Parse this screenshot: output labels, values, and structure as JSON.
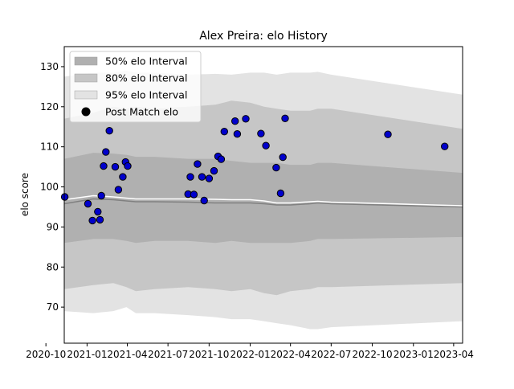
{
  "chart_data": {
    "type": "scatter",
    "title": "Alex Preira: elo History",
    "xlabel": "",
    "ylabel": "elo score",
    "xlim": [
      "2020-11-11",
      "2023-04-21"
    ],
    "ylim": [
      61,
      135
    ],
    "x_ticks": [
      "2020-10",
      "2021-01",
      "2021-04",
      "2021-07",
      "2021-10",
      "2022-01",
      "2022-04",
      "2022-07",
      "2022-10",
      "2023-01",
      "2023-04"
    ],
    "x_tick_dates": [
      "2020-10-01",
      "2021-01-01",
      "2021-04-01",
      "2021-07-01",
      "2021-10-01",
      "2022-01-01",
      "2022-04-01",
      "2022-07-01",
      "2022-10-01",
      "2023-01-01",
      "2023-04-01"
    ],
    "y_ticks": [
      70,
      80,
      90,
      100,
      110,
      120,
      130
    ],
    "grid": false,
    "legend": {
      "placement": "top-left",
      "entries": [
        {
          "label": "50% elo Interval",
          "kind": "band",
          "color": "#b0b0b0"
        },
        {
          "label": "80% elo Interval",
          "kind": "band",
          "color": "#c6c6c6"
        },
        {
          "label": "95% elo Interval",
          "kind": "band",
          "color": "#e3e3e3"
        },
        {
          "label": "Post Match elo",
          "kind": "marker",
          "color": "#000000"
        }
      ]
    },
    "colors": {
      "band50": "#b0b0b0",
      "band80": "#c6c6c6",
      "band95": "#e3e3e3",
      "median_line": "#808080",
      "mean_line": "#ffffff",
      "point_fill": "#0000cc",
      "point_edge": "#000000"
    },
    "bands": {
      "x": [
        "2020-11-11",
        "2021-01-15",
        "2021-03-01",
        "2021-03-30",
        "2021-04-20",
        "2021-06-01",
        "2021-08-15",
        "2021-10-15",
        "2021-11-20",
        "2022-01-01",
        "2022-02-01",
        "2022-03-01",
        "2022-04-01",
        "2022-05-15",
        "2022-06-01",
        "2022-07-01",
        "2023-04-21"
      ],
      "p50_low": [
        86,
        87,
        87,
        86.5,
        86,
        86.5,
        86.5,
        86,
        86.5,
        86,
        86,
        86,
        86,
        86.5,
        87,
        87,
        87.5
      ],
      "p50_high": [
        107,
        108.5,
        108.3,
        108,
        107.5,
        107.5,
        107,
        107,
        106.5,
        106,
        106,
        106,
        105.5,
        105.5,
        106,
        106,
        103.5
      ],
      "p80_low": [
        74.5,
        75.5,
        76,
        75,
        74,
        74.5,
        75,
        74.5,
        74,
        74.5,
        73.5,
        73,
        74,
        74.5,
        75,
        75,
        76
      ],
      "p80_high": [
        117,
        118.5,
        120,
        119.5,
        120,
        119.5,
        120,
        120.5,
        121.5,
        121,
        120,
        119.5,
        119,
        119,
        119.5,
        119.5,
        114.5
      ],
      "p95_low": [
        69,
        68.5,
        69,
        70,
        68.5,
        68.5,
        68,
        67.5,
        67,
        67,
        66.5,
        66,
        65.5,
        64.5,
        64.5,
        65,
        66.5
      ],
      "p95_high": [
        127.5,
        128.5,
        128.5,
        129,
        128.5,
        128.5,
        128,
        128.2,
        128,
        128.5,
        128.5,
        128,
        128.5,
        128.5,
        128.7,
        128,
        123
      ],
      "median": [
        95.8,
        97,
        96.8,
        96.5,
        96.3,
        96.3,
        96.2,
        96,
        96,
        96,
        95.8,
        95.5,
        95.5,
        95.8,
        96,
        95.8,
        95
      ],
      "mean": [
        96.8,
        97.8,
        97.5,
        97.2,
        97,
        97,
        97,
        96.9,
        96.8,
        96.8,
        96.5,
        96,
        96,
        96.3,
        96.4,
        96.2,
        95.3
      ]
    },
    "series": [
      {
        "name": "Post Match elo",
        "points": [
          {
            "x": "2020-11-12",
            "y": 97.5
          },
          {
            "x": "2021-01-03",
            "y": 95.8
          },
          {
            "x": "2021-01-13",
            "y": 91.6
          },
          {
            "x": "2021-01-25",
            "y": 93.8
          },
          {
            "x": "2021-01-30",
            "y": 91.8
          },
          {
            "x": "2021-02-02",
            "y": 97.8
          },
          {
            "x": "2021-02-07",
            "y": 105.2
          },
          {
            "x": "2021-02-12",
            "y": 108.7
          },
          {
            "x": "2021-02-20",
            "y": 114.0
          },
          {
            "x": "2021-03-05",
            "y": 105.0
          },
          {
            "x": "2021-03-12",
            "y": 99.3
          },
          {
            "x": "2021-03-22",
            "y": 102.5
          },
          {
            "x": "2021-03-28",
            "y": 106.2
          },
          {
            "x": "2021-04-02",
            "y": 105.2
          },
          {
            "x": "2021-08-15",
            "y": 98.2
          },
          {
            "x": "2021-08-20",
            "y": 102.5
          },
          {
            "x": "2021-08-28",
            "y": 98.1
          },
          {
            "x": "2021-09-05",
            "y": 105.7
          },
          {
            "x": "2021-09-15",
            "y": 102.5
          },
          {
            "x": "2021-09-20",
            "y": 96.6
          },
          {
            "x": "2021-10-01",
            "y": 102.1
          },
          {
            "x": "2021-10-12",
            "y": 104.0
          },
          {
            "x": "2021-10-21",
            "y": 107.6
          },
          {
            "x": "2021-10-28",
            "y": 106.9
          },
          {
            "x": "2021-11-04",
            "y": 113.8
          },
          {
            "x": "2021-11-28",
            "y": 116.4
          },
          {
            "x": "2021-12-03",
            "y": 113.2
          },
          {
            "x": "2021-12-22",
            "y": 117.0
          },
          {
            "x": "2022-01-25",
            "y": 113.3
          },
          {
            "x": "2022-02-05",
            "y": 110.3
          },
          {
            "x": "2022-02-28",
            "y": 104.8
          },
          {
            "x": "2022-03-10",
            "y": 98.4
          },
          {
            "x": "2022-03-15",
            "y": 107.4
          },
          {
            "x": "2022-03-20",
            "y": 117.1
          },
          {
            "x": "2022-11-05",
            "y": 113.1
          },
          {
            "x": "2023-03-12",
            "y": 110.1
          }
        ]
      }
    ]
  }
}
